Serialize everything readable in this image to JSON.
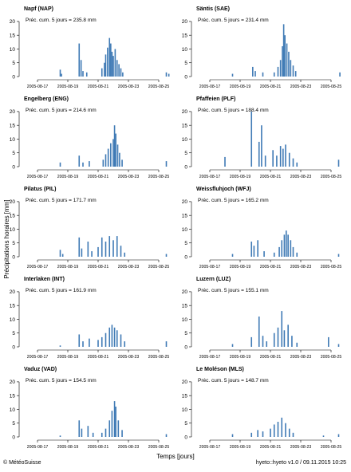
{
  "figure": {
    "ylabel": "Précipitations horaires [mm]",
    "xlabel": "Temps [jours]",
    "credit": "© MétéoSuisse",
    "version": "hyeto::hyeto v1.0 / 09.11.2015 10:25",
    "colors": {
      "bar": "#3f7ab5",
      "axis": "#000000"
    }
  },
  "chart_data": [
    {
      "type": "bar",
      "title": "Napf (NAP)",
      "annotation": "Préc. cum. 5 jours = 235.8 mm",
      "ylim": [
        0,
        22
      ],
      "yticks": [
        0,
        5,
        10,
        15,
        20
      ],
      "x_range": [
        "2005-08-16",
        "2005-08-26"
      ],
      "xticks": [
        "2005-08-17",
        "2005-08-19",
        "2005-08-21",
        "2005-08-23",
        "2005-08-25"
      ],
      "series": [
        {
          "x": "2005-08-18T12",
          "y": 2.5
        },
        {
          "x": "2005-08-18T14",
          "y": 1.0
        },
        {
          "x": "2005-08-19T18",
          "y": 12.0
        },
        {
          "x": "2005-08-19T21",
          "y": 6.0
        },
        {
          "x": "2005-08-20T00",
          "y": 2.0
        },
        {
          "x": "2005-08-20T06",
          "y": 1.5
        },
        {
          "x": "2005-08-21T06",
          "y": 3.0
        },
        {
          "x": "2005-08-21T10",
          "y": 5.0
        },
        {
          "x": "2005-08-21T12",
          "y": 8.0
        },
        {
          "x": "2005-08-21T15",
          "y": 10.5
        },
        {
          "x": "2005-08-21T18",
          "y": 14.0
        },
        {
          "x": "2005-08-21T20",
          "y": 12.0
        },
        {
          "x": "2005-08-21T22",
          "y": 9.0
        },
        {
          "x": "2005-08-22T00",
          "y": 7.5
        },
        {
          "x": "2005-08-22T03",
          "y": 10.0
        },
        {
          "x": "2005-08-22T06",
          "y": 6.0
        },
        {
          "x": "2005-08-22T09",
          "y": 4.5
        },
        {
          "x": "2005-08-22T12",
          "y": 3.0
        },
        {
          "x": "2005-08-22T15",
          "y": 1.5
        },
        {
          "x": "2005-08-25T12",
          "y": 1.5
        },
        {
          "x": "2005-08-25T16",
          "y": 1.0
        }
      ]
    },
    {
      "type": "bar",
      "title": "Säntis (SAE)",
      "annotation": "Préc. cum. 5 jours = 231.4 mm",
      "ylim": [
        0,
        22
      ],
      "yticks": [
        0,
        5,
        10,
        15,
        20
      ],
      "x_range": [
        "2005-08-16",
        "2005-08-26"
      ],
      "xticks": [
        "2005-08-17",
        "2005-08-19",
        "2005-08-21",
        "2005-08-23",
        "2005-08-25"
      ],
      "series": [
        {
          "x": "2005-08-18T12",
          "y": 1.0
        },
        {
          "x": "2005-08-19T20",
          "y": 3.5
        },
        {
          "x": "2005-08-20T00",
          "y": 2.0
        },
        {
          "x": "2005-08-20T12",
          "y": 1.5
        },
        {
          "x": "2005-08-21T06",
          "y": 1.5
        },
        {
          "x": "2005-08-21T12",
          "y": 3.5
        },
        {
          "x": "2005-08-21T16",
          "y": 6.0
        },
        {
          "x": "2005-08-21T19",
          "y": 11.0
        },
        {
          "x": "2005-08-21T21",
          "y": 19.0
        },
        {
          "x": "2005-08-21T23",
          "y": 15.0
        },
        {
          "x": "2005-08-22T02",
          "y": 12.0
        },
        {
          "x": "2005-08-22T05",
          "y": 9.0
        },
        {
          "x": "2005-08-22T08",
          "y": 6.0
        },
        {
          "x": "2005-08-22T12",
          "y": 4.0
        },
        {
          "x": "2005-08-22T16",
          "y": 2.0
        },
        {
          "x": "2005-08-25T14",
          "y": 1.5
        }
      ]
    },
    {
      "type": "bar",
      "title": "Engelberg (ENG)",
      "annotation": "Préc. cum. 5 jours = 214.6 mm",
      "ylim": [
        0,
        22
      ],
      "yticks": [
        0,
        5,
        10,
        15,
        20
      ],
      "x_range": [
        "2005-08-16",
        "2005-08-26"
      ],
      "xticks": [
        "2005-08-17",
        "2005-08-19",
        "2005-08-21",
        "2005-08-23",
        "2005-08-25"
      ],
      "series": [
        {
          "x": "2005-08-18T12",
          "y": 1.5
        },
        {
          "x": "2005-08-19T18",
          "y": 4.0
        },
        {
          "x": "2005-08-20T00",
          "y": 1.5
        },
        {
          "x": "2005-08-20T10",
          "y": 2.0
        },
        {
          "x": "2005-08-21T08",
          "y": 2.5
        },
        {
          "x": "2005-08-21T12",
          "y": 4.5
        },
        {
          "x": "2005-08-21T16",
          "y": 6.5
        },
        {
          "x": "2005-08-21T20",
          "y": 8.5
        },
        {
          "x": "2005-08-22T00",
          "y": 10.0
        },
        {
          "x": "2005-08-22T02",
          "y": 15.0
        },
        {
          "x": "2005-08-22T04",
          "y": 12.0
        },
        {
          "x": "2005-08-22T07",
          "y": 8.0
        },
        {
          "x": "2005-08-22T10",
          "y": 5.0
        },
        {
          "x": "2005-08-22T14",
          "y": 2.5
        },
        {
          "x": "2005-08-25T12",
          "y": 2.0
        }
      ]
    },
    {
      "type": "bar",
      "title": "Pfaffeien (PLF)",
      "annotation": "Préc. cum. 5 jours = 188.4 mm",
      "ylim": [
        0,
        22
      ],
      "yticks": [
        0,
        5,
        10,
        15,
        20
      ],
      "x_range": [
        "2005-08-16",
        "2005-08-26"
      ],
      "xticks": [
        "2005-08-17",
        "2005-08-19",
        "2005-08-21",
        "2005-08-23",
        "2005-08-25"
      ],
      "series": [
        {
          "x": "2005-08-18T00",
          "y": 3.5
        },
        {
          "x": "2005-08-19T18",
          "y": 20.0
        },
        {
          "x": "2005-08-20T06",
          "y": 9.0
        },
        {
          "x": "2005-08-20T10",
          "y": 15.0
        },
        {
          "x": "2005-08-20T16",
          "y": 4.0
        },
        {
          "x": "2005-08-21T04",
          "y": 6.0
        },
        {
          "x": "2005-08-21T10",
          "y": 4.0
        },
        {
          "x": "2005-08-21T16",
          "y": 7.5
        },
        {
          "x": "2005-08-21T20",
          "y": 6.5
        },
        {
          "x": "2005-08-22T00",
          "y": 8.0
        },
        {
          "x": "2005-08-22T06",
          "y": 5.0
        },
        {
          "x": "2005-08-22T12",
          "y": 3.0
        },
        {
          "x": "2005-08-22T18",
          "y": 1.5
        },
        {
          "x": "2005-08-25T12",
          "y": 2.5
        }
      ]
    },
    {
      "type": "bar",
      "title": "Pilatus (PIL)",
      "annotation": "Préc. cum. 5 jours = 171.7 mm",
      "ylim": [
        0,
        22
      ],
      "yticks": [
        0,
        5,
        10,
        15,
        20
      ],
      "x_range": [
        "2005-08-16",
        "2005-08-26"
      ],
      "xticks": [
        "2005-08-17",
        "2005-08-19",
        "2005-08-21",
        "2005-08-23",
        "2005-08-25"
      ],
      "series": [
        {
          "x": "2005-08-18T12",
          "y": 2.5
        },
        {
          "x": "2005-08-18T16",
          "y": 1.0
        },
        {
          "x": "2005-08-19T18",
          "y": 7.0
        },
        {
          "x": "2005-08-19T22",
          "y": 3.0
        },
        {
          "x": "2005-08-20T08",
          "y": 5.5
        },
        {
          "x": "2005-08-20T14",
          "y": 2.0
        },
        {
          "x": "2005-08-21T00",
          "y": 3.5
        },
        {
          "x": "2005-08-21T06",
          "y": 7.0
        },
        {
          "x": "2005-08-21T12",
          "y": 5.5
        },
        {
          "x": "2005-08-21T18",
          "y": 7.5
        },
        {
          "x": "2005-08-22T00",
          "y": 6.0
        },
        {
          "x": "2005-08-22T06",
          "y": 7.5
        },
        {
          "x": "2005-08-22T12",
          "y": 4.0
        },
        {
          "x": "2005-08-22T18",
          "y": 1.5
        },
        {
          "x": "2005-08-25T12",
          "y": 1.0
        }
      ]
    },
    {
      "type": "bar",
      "title": "Weissfluhjoch (WFJ)",
      "annotation": "Préc. cum. 5 jours = 165.2 mm",
      "ylim": [
        0,
        22
      ],
      "yticks": [
        0,
        5,
        10,
        15,
        20
      ],
      "x_range": [
        "2005-08-16",
        "2005-08-26"
      ],
      "xticks": [
        "2005-08-17",
        "2005-08-19",
        "2005-08-21",
        "2005-08-23",
        "2005-08-25"
      ],
      "series": [
        {
          "x": "2005-08-18T12",
          "y": 1.0
        },
        {
          "x": "2005-08-19T18",
          "y": 5.5
        },
        {
          "x": "2005-08-19T22",
          "y": 4.0
        },
        {
          "x": "2005-08-20T04",
          "y": 6.0
        },
        {
          "x": "2005-08-20T14",
          "y": 2.0
        },
        {
          "x": "2005-08-21T06",
          "y": 1.5
        },
        {
          "x": "2005-08-21T14",
          "y": 3.5
        },
        {
          "x": "2005-08-21T18",
          "y": 6.0
        },
        {
          "x": "2005-08-21T22",
          "y": 8.0
        },
        {
          "x": "2005-08-22T01",
          "y": 9.5
        },
        {
          "x": "2005-08-22T04",
          "y": 8.0
        },
        {
          "x": "2005-08-22T08",
          "y": 6.0
        },
        {
          "x": "2005-08-22T12",
          "y": 3.5
        },
        {
          "x": "2005-08-22T18",
          "y": 1.5
        },
        {
          "x": "2005-08-25T12",
          "y": 1.0
        }
      ]
    },
    {
      "type": "bar",
      "title": "Interlaken (INT)",
      "annotation": "Préc. cum. 5 jours = 161.9 mm",
      "ylim": [
        0,
        22
      ],
      "yticks": [
        0,
        5,
        10,
        15,
        20
      ],
      "x_range": [
        "2005-08-16",
        "2005-08-26"
      ],
      "xticks": [
        "2005-08-17",
        "2005-08-19",
        "2005-08-21",
        "2005-08-23",
        "2005-08-25"
      ],
      "series": [
        {
          "x": "2005-08-18T12",
          "y": 0.5
        },
        {
          "x": "2005-08-19T18",
          "y": 4.5
        },
        {
          "x": "2005-08-20T00",
          "y": 2.0
        },
        {
          "x": "2005-08-20T10",
          "y": 3.0
        },
        {
          "x": "2005-08-21T00",
          "y": 2.5
        },
        {
          "x": "2005-08-21T06",
          "y": 3.5
        },
        {
          "x": "2005-08-21T12",
          "y": 5.0
        },
        {
          "x": "2005-08-21T18",
          "y": 7.0
        },
        {
          "x": "2005-08-21T22",
          "y": 8.0
        },
        {
          "x": "2005-08-22T02",
          "y": 7.0
        },
        {
          "x": "2005-08-22T06",
          "y": 6.0
        },
        {
          "x": "2005-08-22T12",
          "y": 4.5
        },
        {
          "x": "2005-08-22T18",
          "y": 2.0
        },
        {
          "x": "2005-08-25T12",
          "y": 2.0
        }
      ]
    },
    {
      "type": "bar",
      "title": "Luzern (LUZ)",
      "annotation": "Préc. cum. 5 jours = 155.1 mm",
      "ylim": [
        0,
        22
      ],
      "yticks": [
        0,
        5,
        10,
        15,
        20
      ],
      "x_range": [
        "2005-08-16",
        "2005-08-26"
      ],
      "xticks": [
        "2005-08-17",
        "2005-08-19",
        "2005-08-21",
        "2005-08-23",
        "2005-08-25"
      ],
      "series": [
        {
          "x": "2005-08-18T12",
          "y": 1.0
        },
        {
          "x": "2005-08-19T18",
          "y": 3.5
        },
        {
          "x": "2005-08-20T06",
          "y": 11.0
        },
        {
          "x": "2005-08-20T12",
          "y": 4.0
        },
        {
          "x": "2005-08-20T18",
          "y": 2.0
        },
        {
          "x": "2005-08-21T06",
          "y": 5.0
        },
        {
          "x": "2005-08-21T12",
          "y": 7.0
        },
        {
          "x": "2005-08-21T18",
          "y": 13.0
        },
        {
          "x": "2005-08-21T22",
          "y": 6.0
        },
        {
          "x": "2005-08-22T04",
          "y": 8.0
        },
        {
          "x": "2005-08-22T10",
          "y": 4.0
        },
        {
          "x": "2005-08-22T18",
          "y": 1.5
        },
        {
          "x": "2005-08-24T20",
          "y": 3.5
        },
        {
          "x": "2005-08-25T12",
          "y": 1.0
        }
      ]
    },
    {
      "type": "bar",
      "title": "Vaduz (VAD)",
      "annotation": "Préc. cum. 5 jours = 154.5 mm",
      "ylim": [
        0,
        22
      ],
      "yticks": [
        0,
        5,
        10,
        15,
        20
      ],
      "x_range": [
        "2005-08-16",
        "2005-08-26"
      ],
      "xticks": [
        "2005-08-17",
        "2005-08-19",
        "2005-08-21",
        "2005-08-23",
        "2005-08-25"
      ],
      "series": [
        {
          "x": "2005-08-18T12",
          "y": 0.5
        },
        {
          "x": "2005-08-19T18",
          "y": 6.0
        },
        {
          "x": "2005-08-19T22",
          "y": 3.0
        },
        {
          "x": "2005-08-20T08",
          "y": 4.0
        },
        {
          "x": "2005-08-20T16",
          "y": 1.5
        },
        {
          "x": "2005-08-21T06",
          "y": 1.5
        },
        {
          "x": "2005-08-21T12",
          "y": 3.0
        },
        {
          "x": "2005-08-21T18",
          "y": 6.0
        },
        {
          "x": "2005-08-21T22",
          "y": 9.5
        },
        {
          "x": "2005-08-22T02",
          "y": 13.0
        },
        {
          "x": "2005-08-22T04",
          "y": 11.0
        },
        {
          "x": "2005-08-22T08",
          "y": 6.0
        },
        {
          "x": "2005-08-22T14",
          "y": 2.5
        },
        {
          "x": "2005-08-25T12",
          "y": 1.0
        }
      ]
    },
    {
      "type": "bar",
      "title": "Le Moléson (MLS)",
      "annotation": "Préc. cum. 5 jours = 148.7 mm",
      "ylim": [
        0,
        22
      ],
      "yticks": [
        0,
        5,
        10,
        15,
        20
      ],
      "x_range": [
        "2005-08-16",
        "2005-08-26"
      ],
      "xticks": [
        "2005-08-17",
        "2005-08-19",
        "2005-08-21",
        "2005-08-23",
        "2005-08-25"
      ],
      "series": [
        {
          "x": "2005-08-18T12",
          "y": 1.0
        },
        {
          "x": "2005-08-19T18",
          "y": 1.5
        },
        {
          "x": "2005-08-20T04",
          "y": 2.5
        },
        {
          "x": "2005-08-20T12",
          "y": 2.0
        },
        {
          "x": "2005-08-21T00",
          "y": 3.0
        },
        {
          "x": "2005-08-21T06",
          "y": 4.5
        },
        {
          "x": "2005-08-21T12",
          "y": 5.5
        },
        {
          "x": "2005-08-21T18",
          "y": 7.0
        },
        {
          "x": "2005-08-22T00",
          "y": 5.0
        },
        {
          "x": "2005-08-22T06",
          "y": 3.0
        },
        {
          "x": "2005-08-22T12",
          "y": 1.5
        },
        {
          "x": "2005-08-24T12",
          "y": 0.5
        },
        {
          "x": "2005-08-25T12",
          "y": 1.0
        }
      ]
    }
  ]
}
